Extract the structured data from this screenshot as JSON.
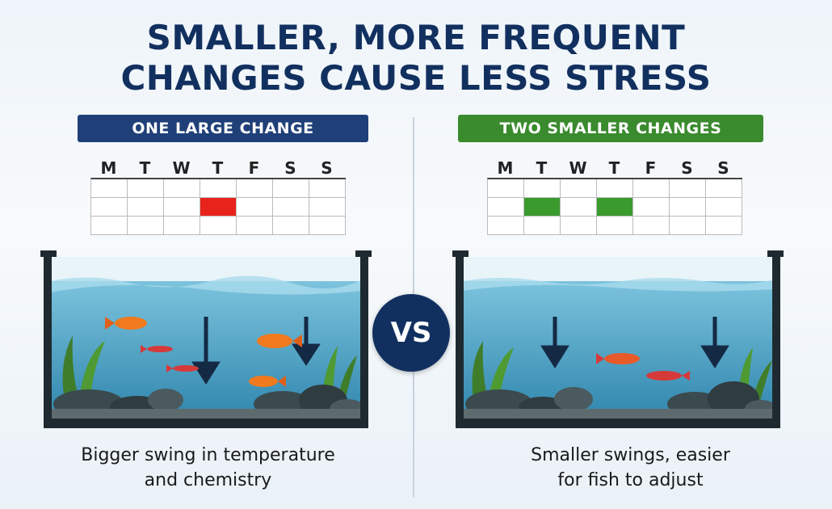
{
  "title": {
    "line1": "SMALLER, MORE FREQUENT",
    "line2": "CHANGES CAUSE LESS STRESS"
  },
  "vs_label": "VS",
  "left": {
    "heading": "ONE LARGE CHANGE",
    "days": [
      "M",
      "T",
      "W",
      "T",
      "F",
      "S",
      "S"
    ],
    "highlighted_days": [
      3
    ],
    "highlight_color": "#e8231c",
    "caption_line1": "Bigger swing in temperature",
    "caption_line2": "and chemistry"
  },
  "right": {
    "heading": "TWO SMALLER CHANGES",
    "days": [
      "M",
      "T",
      "W",
      "T",
      "F",
      "S",
      "S"
    ],
    "highlighted_days": [
      1,
      3
    ],
    "highlight_color": "#3a9a2e",
    "caption_line1": "Smaller swings, easier",
    "caption_line2": "for fish to adjust"
  },
  "colors": {
    "title": "#12305f",
    "heading_left": "#1f3f78",
    "heading_right": "#3a8a2e",
    "water": "#4fa7c9"
  }
}
